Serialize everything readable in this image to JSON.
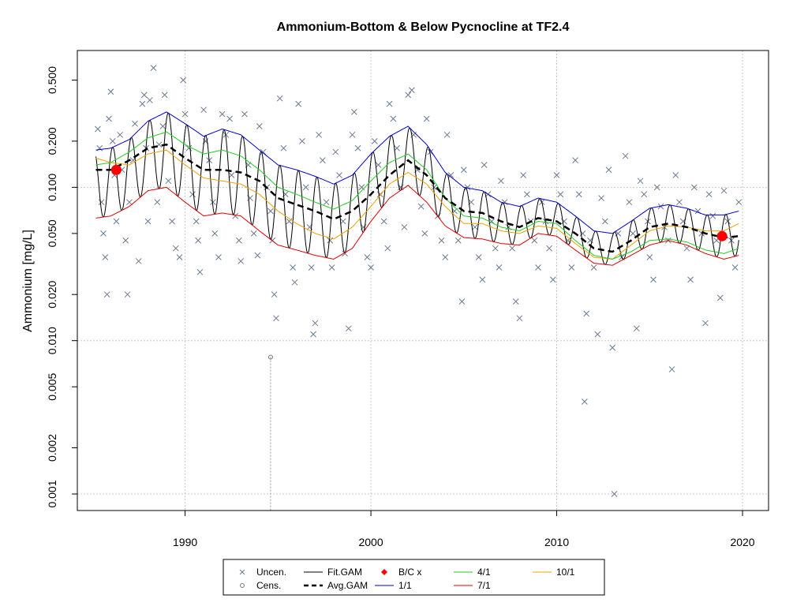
{
  "chart_data": {
    "type": "scatter",
    "title": "Ammonium-Bottom & Below Pycnocline at TF2.4",
    "ylabel": "Ammonium [mg/L]",
    "xlabel": "",
    "y_scale": "log",
    "xlim": [
      1984.2,
      2021.4
    ],
    "ylim": [
      0.00078,
      0.78
    ],
    "x_ticks": [
      1990,
      2000,
      2010,
      2020
    ],
    "y_ticks": [
      0.001,
      0.002,
      0.005,
      0.01,
      0.02,
      0.05,
      0.1,
      0.2,
      0.5
    ],
    "y_tick_labels": [
      "0.001",
      "0.002",
      "0.005",
      "0.010",
      "0.020",
      "0.050",
      "0.100",
      "0.200",
      "0.500"
    ],
    "grid": true,
    "legend_position": "bottom",
    "colors": {
      "uncen": "#6b7a8f",
      "cens": "#777777",
      "fit_gam": "#000000",
      "avg_gam": "#000000",
      "bc": "#ff0000",
      "p1_1": "#0000cc",
      "p4_1": "#22cc22",
      "p7_1": "#dd0000",
      "p10_1": "#f0a000",
      "grid": "#c8c8c8"
    },
    "legend": [
      {
        "key": "uncen",
        "label": "Uncen.",
        "symbol": "cross"
      },
      {
        "key": "cens",
        "label": "Cens.",
        "symbol": "circle"
      },
      {
        "key": "fit_gam",
        "label": "Fit.GAM",
        "symbol": "line"
      },
      {
        "key": "avg_gam",
        "label": "Avg.GAM",
        "symbol": "dash"
      },
      {
        "key": "bc",
        "label": "B/C x",
        "symbol": "diamond"
      },
      {
        "key": "p1_1",
        "label": "1/1",
        "symbol": "line"
      },
      {
        "key": "p4_1",
        "label": "4/1",
        "symbol": "line"
      },
      {
        "key": "p7_1",
        "label": "7/1",
        "symbol": "line"
      },
      {
        "key": "p10_1",
        "label": "10/1",
        "symbol": "line"
      }
    ],
    "series": [
      {
        "key": "avg_gam",
        "x": [
          1985.2,
          1986,
          1987,
          1988,
          1989,
          1990,
          1991,
          1992,
          1993,
          1994,
          1995,
          1996,
          1997,
          1998,
          1999,
          2000,
          2001,
          2002,
          2003,
          2004,
          2005,
          2006,
          2007,
          2008,
          2009,
          2010,
          2011,
          2012,
          2013,
          2014,
          2015,
          2016,
          2017,
          2018,
          2019,
          2019.8
        ],
        "y": [
          0.13,
          0.13,
          0.15,
          0.18,
          0.19,
          0.155,
          0.13,
          0.13,
          0.125,
          0.11,
          0.085,
          0.077,
          0.07,
          0.062,
          0.07,
          0.09,
          0.12,
          0.15,
          0.12,
          0.085,
          0.07,
          0.068,
          0.06,
          0.055,
          0.063,
          0.06,
          0.05,
          0.04,
          0.038,
          0.045,
          0.055,
          0.058,
          0.055,
          0.05,
          0.047,
          0.048
        ]
      },
      {
        "key": "p1_1",
        "x": [
          1985.2,
          1986,
          1987,
          1988,
          1989,
          1990,
          1991,
          1992,
          1993,
          1994,
          1995,
          1996,
          1997,
          1998,
          1999,
          2000,
          2001,
          2002,
          2003,
          2004,
          2005,
          2006,
          2007,
          2008,
          2009,
          2010,
          2011,
          2012,
          2013,
          2014,
          2015,
          2016,
          2017,
          2018,
          2019,
          2019.8
        ],
        "y": [
          0.175,
          0.18,
          0.205,
          0.27,
          0.31,
          0.26,
          0.215,
          0.24,
          0.22,
          0.175,
          0.14,
          0.13,
          0.118,
          0.105,
          0.12,
          0.165,
          0.215,
          0.25,
          0.19,
          0.125,
          0.1,
          0.095,
          0.08,
          0.075,
          0.085,
          0.08,
          0.065,
          0.052,
          0.05,
          0.06,
          0.073,
          0.077,
          0.073,
          0.066,
          0.066,
          0.07
        ]
      },
      {
        "key": "p4_1",
        "x": [
          1985.2,
          1986,
          1987,
          1988,
          1989,
          1990,
          1991,
          1992,
          1993,
          1994,
          1995,
          1996,
          1997,
          1998,
          1999,
          2000,
          2001,
          2002,
          2003,
          2004,
          2005,
          2006,
          2007,
          2008,
          2009,
          2010,
          2011,
          2012,
          2013,
          2014,
          2015,
          2016,
          2017,
          2018,
          2019,
          2019.8
        ],
        "y": [
          0.14,
          0.145,
          0.17,
          0.21,
          0.23,
          0.19,
          0.165,
          0.175,
          0.16,
          0.13,
          0.1,
          0.09,
          0.08,
          0.072,
          0.082,
          0.11,
          0.145,
          0.165,
          0.13,
          0.085,
          0.065,
          0.063,
          0.055,
          0.052,
          0.06,
          0.058,
          0.045,
          0.036,
          0.034,
          0.038,
          0.045,
          0.046,
          0.044,
          0.039,
          0.037,
          0.04
        ]
      },
      {
        "key": "p10_1",
        "x": [
          1985.2,
          1986,
          1987,
          1988,
          1989,
          1990,
          1991,
          1992,
          1993,
          1994,
          1995,
          1996,
          1997,
          1998,
          1999,
          2000,
          2001,
          2002,
          2003,
          2004,
          2005,
          2006,
          2007,
          2008,
          2009,
          2010,
          2011,
          2012,
          2013,
          2014,
          2015,
          2016,
          2017,
          2018,
          2019,
          2019.8
        ],
        "y": [
          0.155,
          0.145,
          0.14,
          0.165,
          0.175,
          0.14,
          0.115,
          0.11,
          0.105,
          0.09,
          0.07,
          0.058,
          0.05,
          0.046,
          0.055,
          0.075,
          0.105,
          0.125,
          0.105,
          0.075,
          0.058,
          0.058,
          0.052,
          0.05,
          0.056,
          0.054,
          0.043,
          0.035,
          0.034,
          0.042,
          0.052,
          0.056,
          0.055,
          0.052,
          0.052,
          0.058
        ]
      },
      {
        "key": "p7_1",
        "x": [
          1985.2,
          1986,
          1987,
          1988,
          1989,
          1990,
          1991,
          1992,
          1993,
          1994,
          1995,
          1996,
          1997,
          1998,
          1999,
          2000,
          2001,
          2002,
          2003,
          2004,
          2005,
          2006,
          2007,
          2008,
          2009,
          2010,
          2011,
          2012,
          2013,
          2014,
          2015,
          2016,
          2017,
          2018,
          2019,
          2019.8
        ],
        "y": [
          0.063,
          0.065,
          0.075,
          0.095,
          0.1,
          0.08,
          0.065,
          0.068,
          0.065,
          0.052,
          0.042,
          0.039,
          0.036,
          0.034,
          0.04,
          0.06,
          0.085,
          0.103,
          0.08,
          0.056,
          0.047,
          0.046,
          0.043,
          0.042,
          0.05,
          0.048,
          0.039,
          0.032,
          0.031,
          0.036,
          0.042,
          0.045,
          0.042,
          0.037,
          0.034,
          0.036
        ]
      }
    ],
    "bc_points": [
      {
        "x": 1986.3,
        "y": 0.13
      },
      {
        "x": 2018.9,
        "y": 0.048
      }
    ],
    "censored_points": [
      {
        "x": 1994.6,
        "y": 0.0078
      }
    ],
    "observations": [
      [
        1985.3,
        0.24
      ],
      [
        1985.4,
        0.18
      ],
      [
        1985.5,
        0.08
      ],
      [
        1985.6,
        0.05
      ],
      [
        1985.7,
        0.035
      ],
      [
        1985.8,
        0.02
      ],
      [
        1985.9,
        0.28
      ],
      [
        1986.0,
        0.42
      ],
      [
        1986.1,
        0.2
      ],
      [
        1986.2,
        0.12
      ],
      [
        1986.3,
        0.06
      ],
      [
        1986.5,
        0.22
      ],
      [
        1986.6,
        0.13
      ],
      [
        1986.8,
        0.045
      ],
      [
        1986.9,
        0.02
      ],
      [
        1987.0,
        0.08
      ],
      [
        1987.2,
        0.15
      ],
      [
        1987.3,
        0.26
      ],
      [
        1987.5,
        0.033
      ],
      [
        1987.7,
        0.35
      ],
      [
        1987.8,
        0.4
      ],
      [
        1987.9,
        0.18
      ],
      [
        1988.0,
        0.06
      ],
      [
        1988.1,
        0.37
      ],
      [
        1988.3,
        0.6
      ],
      [
        1988.5,
        0.08
      ],
      [
        1988.6,
        0.19
      ],
      [
        1988.8,
        0.25
      ],
      [
        1988.9,
        0.4
      ],
      [
        1989.1,
        0.11
      ],
      [
        1989.3,
        0.06
      ],
      [
        1989.5,
        0.04
      ],
      [
        1989.7,
        0.035
      ],
      [
        1989.9,
        0.5
      ],
      [
        1990.0,
        0.3
      ],
      [
        1990.2,
        0.18
      ],
      [
        1990.4,
        0.09
      ],
      [
        1990.6,
        0.06
      ],
      [
        1990.7,
        0.045
      ],
      [
        1990.8,
        0.028
      ],
      [
        1991.0,
        0.32
      ],
      [
        1991.1,
        0.2
      ],
      [
        1991.3,
        0.15
      ],
      [
        1991.5,
        0.08
      ],
      [
        1991.6,
        0.05
      ],
      [
        1991.8,
        0.035
      ],
      [
        1992.0,
        0.3
      ],
      [
        1992.2,
        0.22
      ],
      [
        1992.4,
        0.28
      ],
      [
        1992.5,
        0.12
      ],
      [
        1992.7,
        0.065
      ],
      [
        1992.9,
        0.045
      ],
      [
        1993.0,
        0.033
      ],
      [
        1993.2,
        0.3
      ],
      [
        1993.4,
        0.14
      ],
      [
        1993.5,
        0.085
      ],
      [
        1993.7,
        0.05
      ],
      [
        1993.9,
        0.036
      ],
      [
        1994.0,
        0.25
      ],
      [
        1994.2,
        0.17
      ],
      [
        1994.4,
        0.1
      ],
      [
        1994.6,
        0.07
      ],
      [
        1994.7,
        0.045
      ],
      [
        1994.8,
        0.02
      ],
      [
        1994.9,
        0.014
      ],
      [
        1995.1,
        0.38
      ],
      [
        1995.3,
        0.18
      ],
      [
        1995.4,
        0.09
      ],
      [
        1995.6,
        0.06
      ],
      [
        1995.8,
        0.03
      ],
      [
        1995.9,
        0.024
      ],
      [
        1996.1,
        0.35
      ],
      [
        1996.3,
        0.2
      ],
      [
        1996.5,
        0.1
      ],
      [
        1996.7,
        0.055
      ],
      [
        1996.8,
        0.03
      ],
      [
        1996.9,
        0.011
      ],
      [
        1997.0,
        0.013
      ],
      [
        1997.2,
        0.22
      ],
      [
        1997.4,
        0.15
      ],
      [
        1997.6,
        0.08
      ],
      [
        1997.8,
        0.045
      ],
      [
        1997.9,
        0.03
      ],
      [
        1998.1,
        0.17
      ],
      [
        1998.3,
        0.12
      ],
      [
        1998.5,
        0.06
      ],
      [
        1998.6,
        0.037
      ],
      [
        1998.8,
        0.012
      ],
      [
        1999.0,
        0.22
      ],
      [
        1999.1,
        0.31
      ],
      [
        1999.3,
        0.18
      ],
      [
        1999.5,
        0.1
      ],
      [
        1999.6,
        0.055
      ],
      [
        1999.8,
        0.035
      ],
      [
        2000.0,
        0.03
      ],
      [
        2000.2,
        0.2
      ],
      [
        2000.4,
        0.14
      ],
      [
        2000.5,
        0.09
      ],
      [
        2000.7,
        0.06
      ],
      [
        2000.9,
        0.04
      ],
      [
        2001.0,
        0.35
      ],
      [
        2001.2,
        0.28
      ],
      [
        2001.4,
        0.18
      ],
      [
        2001.6,
        0.1
      ],
      [
        2001.8,
        0.055
      ],
      [
        2002.0,
        0.4
      ],
      [
        2002.2,
        0.43
      ],
      [
        2002.3,
        0.22
      ],
      [
        2002.5,
        0.13
      ],
      [
        2002.7,
        0.075
      ],
      [
        2002.9,
        0.05
      ],
      [
        2003.0,
        0.28
      ],
      [
        2003.2,
        0.17
      ],
      [
        2003.4,
        0.1
      ],
      [
        2003.6,
        0.065
      ],
      [
        2003.8,
        0.045
      ],
      [
        2004.0,
        0.035
      ],
      [
        2004.1,
        0.22
      ],
      [
        2004.3,
        0.12
      ],
      [
        2004.5,
        0.07
      ],
      [
        2004.7,
        0.045
      ],
      [
        2004.9,
        0.018
      ],
      [
        2005.0,
        0.13
      ],
      [
        2005.2,
        0.1
      ],
      [
        2005.4,
        0.08
      ],
      [
        2005.6,
        0.055
      ],
      [
        2005.8,
        0.035
      ],
      [
        2006.0,
        0.025
      ],
      [
        2006.1,
        0.14
      ],
      [
        2006.3,
        0.09
      ],
      [
        2006.5,
        0.06
      ],
      [
        2006.7,
        0.04
      ],
      [
        2006.9,
        0.03
      ],
      [
        2007.0,
        0.11
      ],
      [
        2007.2,
        0.08
      ],
      [
        2007.4,
        0.055
      ],
      [
        2007.6,
        0.04
      ],
      [
        2007.8,
        0.018
      ],
      [
        2008.0,
        0.014
      ],
      [
        2008.2,
        0.12
      ],
      [
        2008.4,
        0.09
      ],
      [
        2008.6,
        0.06
      ],
      [
        2008.8,
        0.045
      ],
      [
        2009.0,
        0.03
      ],
      [
        2009.2,
        0.08
      ],
      [
        2009.4,
        0.06
      ],
      [
        2009.6,
        0.04
      ],
      [
        2009.8,
        0.025
      ],
      [
        2010.0,
        0.12
      ],
      [
        2010.2,
        0.09
      ],
      [
        2010.4,
        0.06
      ],
      [
        2010.6,
        0.045
      ],
      [
        2010.8,
        0.03
      ],
      [
        2011.0,
        0.15
      ],
      [
        2011.2,
        0.09
      ],
      [
        2011.4,
        0.05
      ],
      [
        2011.5,
        0.004
      ],
      [
        2011.6,
        0.015
      ],
      [
        2011.8,
        0.045
      ],
      [
        2012.0,
        0.03
      ],
      [
        2012.2,
        0.011
      ],
      [
        2012.4,
        0.085
      ],
      [
        2012.6,
        0.06
      ],
      [
        2012.8,
        0.13
      ],
      [
        2013.0,
        0.009
      ],
      [
        2013.1,
        0.001
      ],
      [
        2013.3,
        0.05
      ],
      [
        2013.5,
        0.035
      ],
      [
        2013.7,
        0.16
      ],
      [
        2013.9,
        0.08
      ],
      [
        2014.1,
        0.05
      ],
      [
        2014.3,
        0.012
      ],
      [
        2014.5,
        0.11
      ],
      [
        2014.7,
        0.09
      ],
      [
        2014.9,
        0.06
      ],
      [
        2015.0,
        0.035
      ],
      [
        2015.2,
        0.025
      ],
      [
        2015.4,
        0.1
      ],
      [
        2015.6,
        0.075
      ],
      [
        2015.8,
        0.055
      ],
      [
        2016.0,
        0.045
      ],
      [
        2016.2,
        0.0065
      ],
      [
        2016.4,
        0.12
      ],
      [
        2016.6,
        0.08
      ],
      [
        2016.8,
        0.06
      ],
      [
        2017.0,
        0.04
      ],
      [
        2017.2,
        0.025
      ],
      [
        2017.4,
        0.1
      ],
      [
        2017.6,
        0.07
      ],
      [
        2017.8,
        0.05
      ],
      [
        2018.0,
        0.013
      ],
      [
        2018.2,
        0.09
      ],
      [
        2018.4,
        0.065
      ],
      [
        2018.6,
        0.045
      ],
      [
        2018.8,
        0.019
      ],
      [
        2019.0,
        0.095
      ],
      [
        2019.2,
        0.06
      ],
      [
        2019.4,
        0.045
      ],
      [
        2019.6,
        0.03
      ],
      [
        2019.8,
        0.08
      ]
    ]
  }
}
